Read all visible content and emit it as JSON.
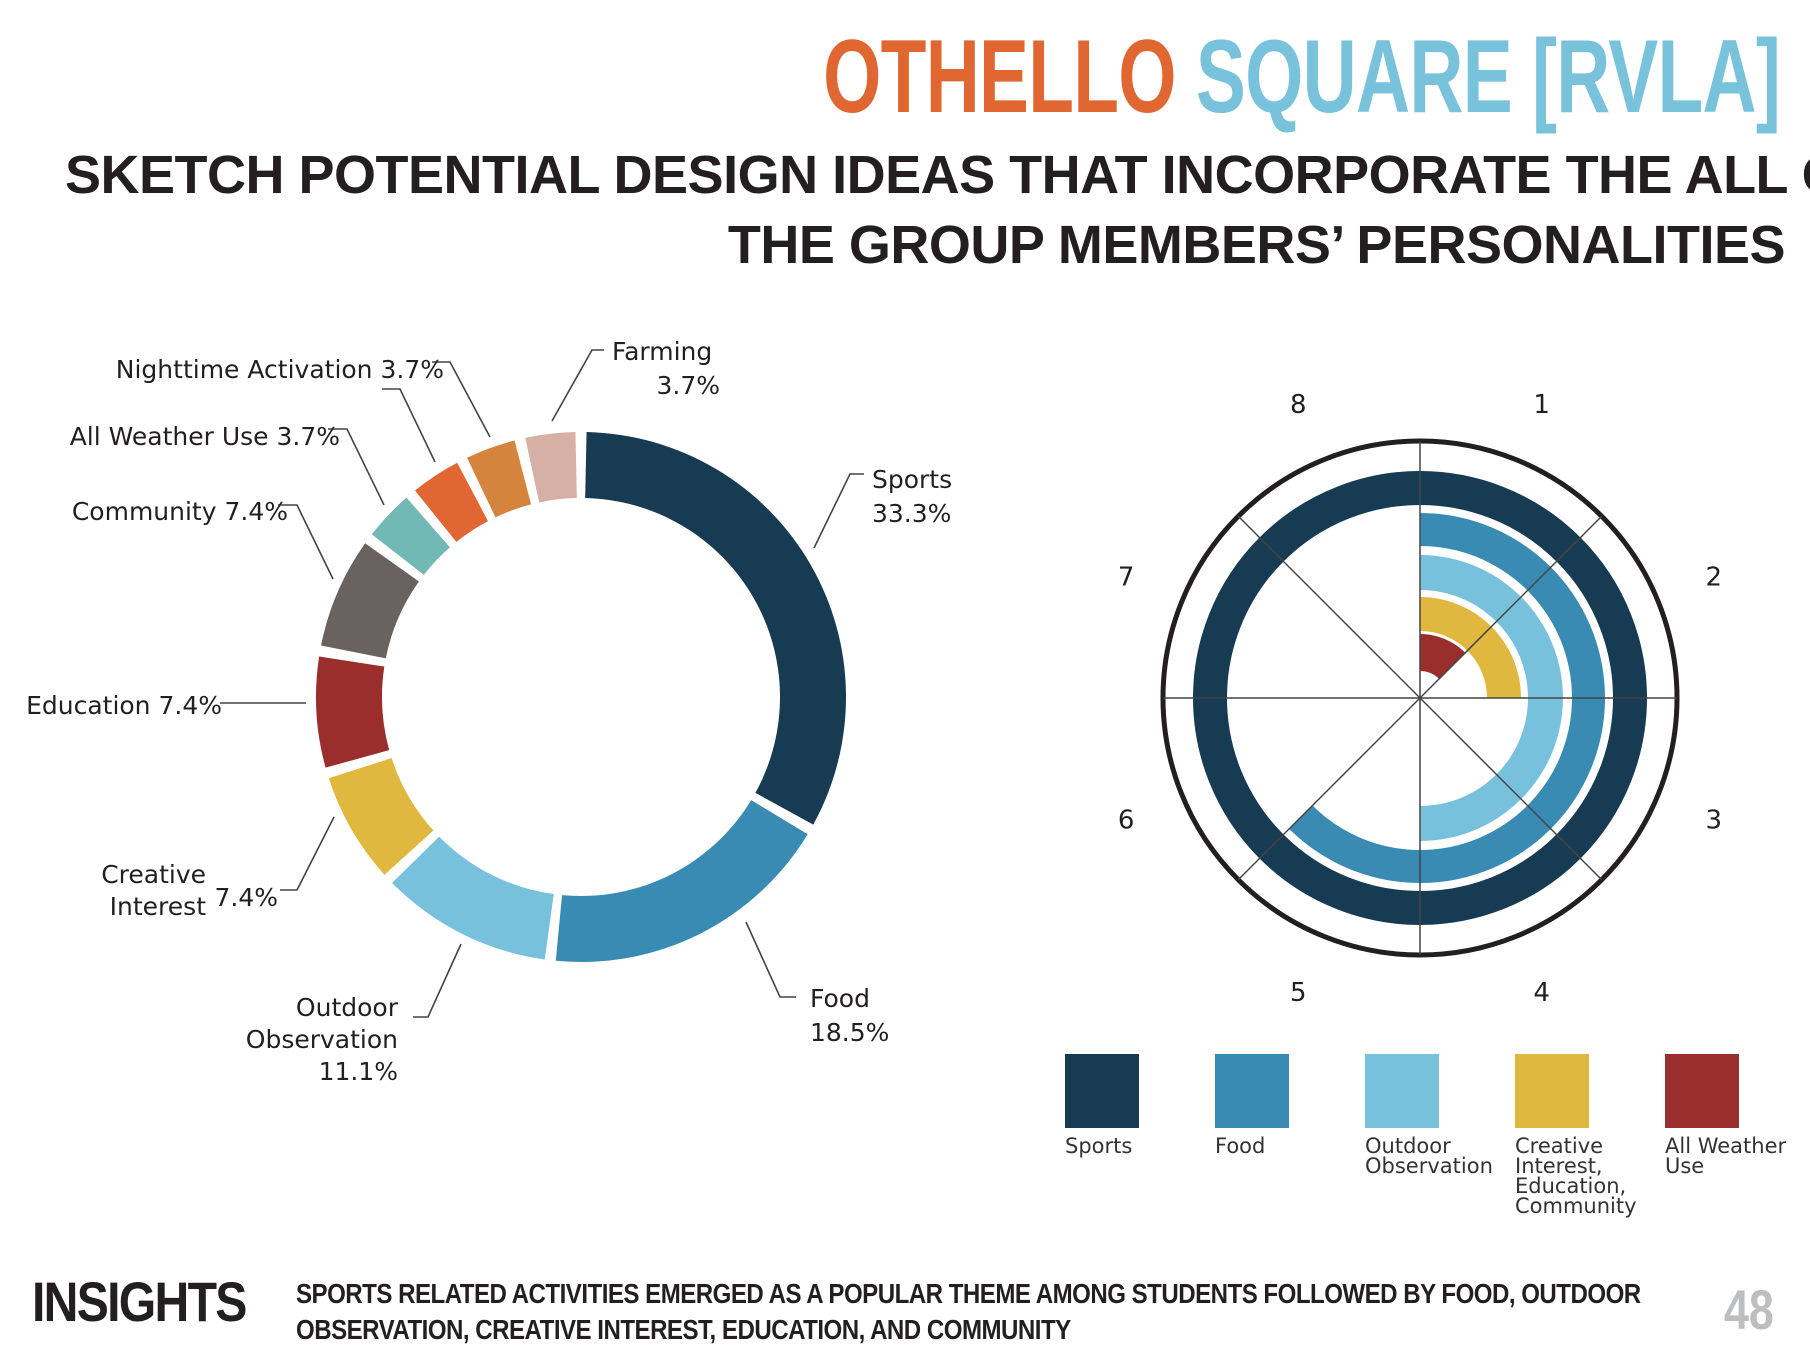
{
  "header": {
    "title_part1": "OTHELLO",
    "title_part2": "SQUARE [RVLA]",
    "subtitle_line1": "SKETCH POTENTIAL DESIGN IDEAS THAT INCORPORATE THE ALL OF",
    "subtitle_line2": "THE GROUP MEMBERS’ PERSONALITIES",
    "colors": {
      "title_part1": "#e06732",
      "title_part2": "#79c2dc"
    }
  },
  "chart_data": [
    {
      "type": "pie",
      "variant": "donut",
      "title": "",
      "slices": [
        {
          "label": "Sports",
          "value": 33.3,
          "display": "33.3%",
          "color": "#173b52"
        },
        {
          "label": "Food",
          "value": 18.5,
          "display": "18.5%",
          "color": "#398bb3"
        },
        {
          "label": "Outdoor Observation",
          "value": 11.1,
          "display": "11.1%",
          "color": "#78c1dc"
        },
        {
          "label": "Creative Interest",
          "value": 7.4,
          "display": "7.4%",
          "color": "#e0b840"
        },
        {
          "label": "Education",
          "value": 7.4,
          "display": "7.4%",
          "color": "#992e2c"
        },
        {
          "label": "Community",
          "value": 7.4,
          "display": "7.4%",
          "color": "#6a625e"
        },
        {
          "label": "All Weather Use",
          "value": 3.7,
          "display": "3.7%",
          "color": "#72b8b5"
        },
        {
          "label": "",
          "value": 3.7,
          "display": "",
          "color": "#e06732"
        },
        {
          "label": "Nighttime Activation",
          "value": 3.7,
          "display": "3.7%",
          "color": "#d4843d"
        },
        {
          "label": "Farming",
          "value": 3.7,
          "display": "3.7%",
          "color": "#d6afa5"
        }
      ],
      "text_labels": {
        "sports": [
          "Sports",
          "33.3%"
        ],
        "food": [
          "Food",
          "18.5%"
        ],
        "outdoor": [
          "Outdoor",
          "Observation",
          "11.1%"
        ],
        "creative": [
          "Creative",
          "Interest",
          "7.4%"
        ],
        "education": [
          "Education 7.4%"
        ],
        "community": [
          "Community 7.4%"
        ],
        "all_weather": [
          "All Weather Use 3.7%"
        ],
        "nighttime": [
          "Nighttime Activation 3.7%"
        ],
        "farming": [
          "Farming",
          "3.7%"
        ]
      }
    },
    {
      "type": "radial-bar",
      "title": "",
      "sector_count": 8,
      "sector_labels": [
        "1",
        "2",
        "3",
        "4",
        "5",
        "6",
        "7",
        "8"
      ],
      "series": [
        {
          "name": "Sports",
          "sectors": 8,
          "color": "#173b52"
        },
        {
          "name": "Food",
          "sectors": 5,
          "color": "#398bb3"
        },
        {
          "name": "Outdoor Observation",
          "sectors": 4,
          "color": "#78c1dc"
        },
        {
          "name": "Creative Interest, Education, Community",
          "sectors": 2,
          "color": "#e0b840"
        },
        {
          "name": "All Weather Use",
          "sectors": 1,
          "color": "#992e2c"
        }
      ],
      "legend": [
        {
          "label": "Sports",
          "color": "#173b52"
        },
        {
          "label": "Food",
          "color": "#398bb3"
        },
        {
          "label": "Outdoor\nObservation",
          "color": "#78c1dc"
        },
        {
          "label": "Creative\nInterest,\nEducation,\nCommunity",
          "color": "#e0b840"
        },
        {
          "label": "All Weather\nUse",
          "color": "#992e2c"
        }
      ],
      "legend_position": "bottom"
    }
  ],
  "footer": {
    "insights_heading": "INSIGHTS",
    "insights_line1": "SPORTS RELATED ACTIVITIES EMERGED AS A POPULAR THEME AMONG STUDENTS FOLLOWED BY FOOD, OUTDOOR",
    "insights_line2": "OBSERVATION, CREATIVE INTEREST, EDUCATION, AND COMMUNITY",
    "page_number": "48"
  }
}
